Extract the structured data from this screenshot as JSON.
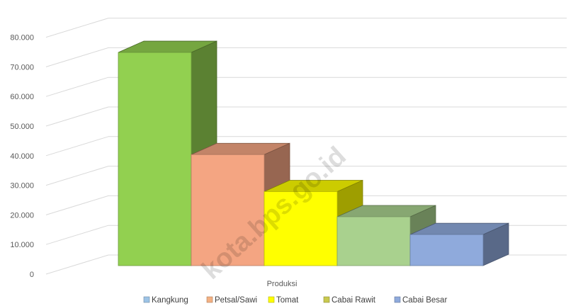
{
  "chart_data": {
    "type": "bar",
    "style": "3d-clustered-column",
    "categories": [
      "Produksi"
    ],
    "xlabel": "Produksi",
    "ylabel": "",
    "title": "",
    "ylim": [
      0,
      80000
    ],
    "yticks": [
      "0",
      "10.000",
      "20.000",
      "30.000",
      "40.000",
      "50.000",
      "60.000",
      "70.000",
      "80.000"
    ],
    "grid": true,
    "legend_position": "bottom",
    "series": [
      {
        "name": "Kangkung",
        "values": [
          72000
        ],
        "color": "#92d050"
      },
      {
        "name": "Petsal/Sawi",
        "values": [
          37500
        ],
        "color": "#f4a582"
      },
      {
        "name": "Tomat",
        "values": [
          25000
        ],
        "color": "#ffff00"
      },
      {
        "name": "Cabai Rawit",
        "values": [
          16500
        ],
        "color": "#a9d18e"
      },
      {
        "name": "Cabai Besar",
        "values": [
          10500
        ],
        "color": "#8faadc"
      }
    ],
    "legend_colors": [
      "#9dc3e6",
      "#f4b183",
      "#ffff00",
      "#c9c94f",
      "#8faadc"
    ]
  },
  "watermark": "kota.bps.go.id"
}
